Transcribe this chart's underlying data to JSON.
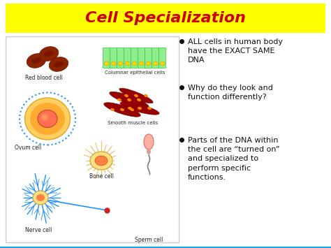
{
  "title": "Cell Specialization",
  "title_color": "#cc0000",
  "title_bg_color": "#ffff00",
  "bg_color_top": "#00e0d0",
  "bg_color_bottom": "#00aaff",
  "bullet_points": [
    "ALL cells in human body\nhave the EXACT SAME\nDNA",
    "Why do they look and\nfunction differently?",
    "Parts of the DNA within\nthe cell are “turned on”\nand specialized to\nperform specific\nfunctions."
  ],
  "bullet_color": "#111111",
  "image_panel_bg": "#ffffff",
  "image_panel_border": "#cccccc",
  "cell_labels": [
    "Red blood cell",
    "Columnar epithelial cells",
    "Ovum cell",
    "Smooth muscle cells",
    "Bone cell",
    "Nerve cell",
    "Sperm cell"
  ],
  "fig_width": 4.74,
  "fig_height": 3.55,
  "dpi": 100
}
